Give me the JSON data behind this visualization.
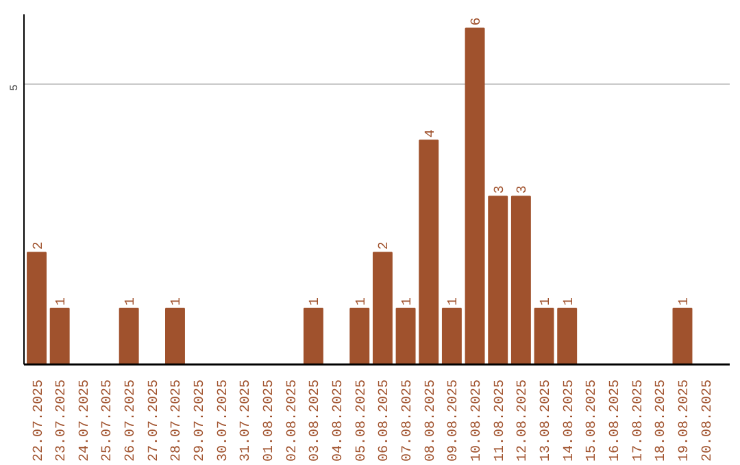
{
  "chart_data": {
    "type": "bar",
    "categories": [
      "22.07.2025",
      "23.07.2025",
      "24.07.2025",
      "25.07.2025",
      "26.07.2025",
      "27.07.2025",
      "28.07.2025",
      "29.07.2025",
      "30.07.2025",
      "31.07.2025",
      "01.08.2025",
      "02.08.2025",
      "03.08.2025",
      "04.08.2025",
      "05.08.2025",
      "06.08.2025",
      "07.08.2025",
      "08.08.2025",
      "09.08.2025",
      "10.08.2025",
      "11.08.2025",
      "12.08.2025",
      "13.08.2025",
      "14.08.2025",
      "15.08.2025",
      "16.08.2025",
      "17.08.2025",
      "18.08.2025",
      "19.08.2025",
      "20.08.2025"
    ],
    "values": [
      2,
      1,
      0,
      0,
      1,
      0,
      1,
      0,
      0,
      0,
      0,
      0,
      1,
      0,
      1,
      2,
      1,
      4,
      1,
      6,
      3,
      3,
      1,
      1,
      0,
      0,
      0,
      0,
      1,
      0
    ],
    "value_labels": [
      "2",
      "1",
      null,
      null,
      "1",
      null,
      "1",
      null,
      null,
      null,
      null,
      null,
      "1",
      null,
      "1",
      "2",
      "1",
      "4",
      "1",
      "6",
      "3",
      "3",
      "1",
      "1",
      null,
      null,
      null,
      null,
      "1",
      null
    ],
    "color": "#a0522d",
    "ylim": [
      0,
      6.25
    ],
    "yticks": [
      5
    ],
    "grid": "y"
  }
}
